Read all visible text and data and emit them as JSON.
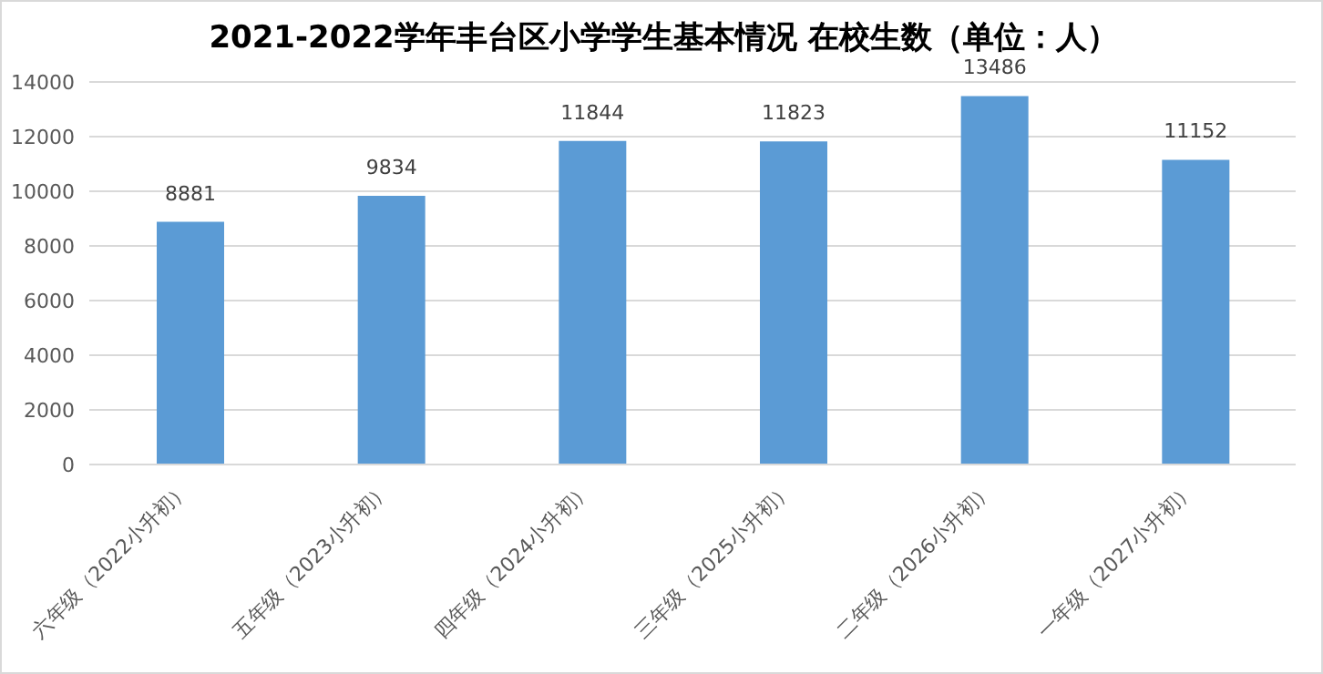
{
  "chart_data": {
    "type": "bar",
    "title": "2021-2022学年丰台区小学学生基本情况 在校生数（单位：人）",
    "categories": [
      "六年级（2022小升初）",
      "五年级（2023小升初）",
      "四年级（2024小升初）",
      "三年级（2025小升初）",
      "二年级（2026小升初）",
      "一年级（2027小升初）"
    ],
    "values": [
      8881,
      9834,
      11844,
      11823,
      13486,
      11152
    ],
    "color": "#5b9bd5",
    "ylim": [
      0,
      14000
    ],
    "yticks": [
      0,
      2000,
      4000,
      6000,
      8000,
      10000,
      12000,
      14000
    ],
    "grid": "y",
    "data_labels": true
  }
}
